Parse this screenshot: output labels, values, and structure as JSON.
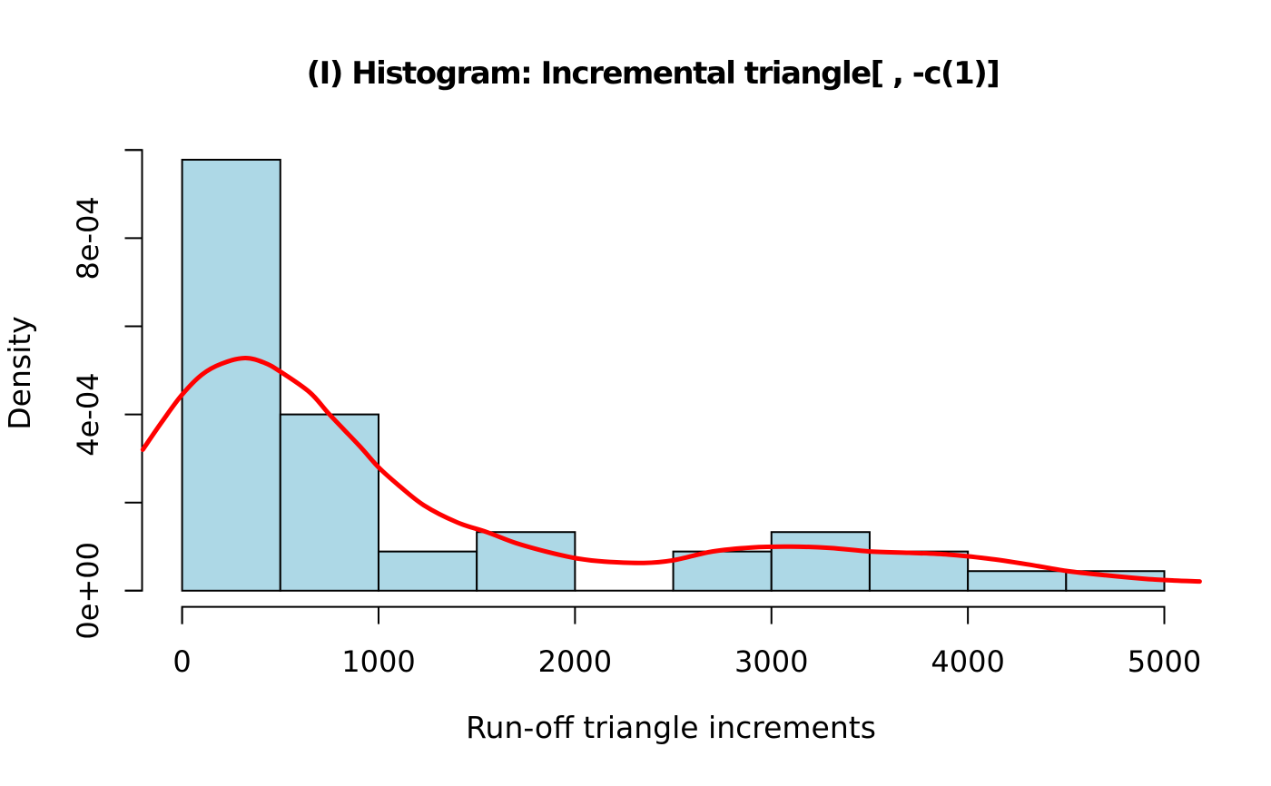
{
  "figure": {
    "background": "#FFFFFF",
    "text_color": "#000000"
  },
  "chart_data": {
    "type": "bar",
    "subtype": "histogram-with-density-curve",
    "title": "(I) Histogram: Incremental triangle[ , -c(1)]",
    "xlabel": "Run-off triangle increments",
    "ylabel": "Density",
    "grid": false,
    "legend": null,
    "xlim": [
      -200,
      5200
    ],
    "ylim": [
      0,
      0.001
    ],
    "x_ticks": [
      {
        "value": 0,
        "label": "0"
      },
      {
        "value": 1000,
        "label": "1000"
      },
      {
        "value": 2000,
        "label": "2000"
      },
      {
        "value": 3000,
        "label": "3000"
      },
      {
        "value": 4000,
        "label": "4000"
      },
      {
        "value": 5000,
        "label": "5000"
      }
    ],
    "y_ticks_minor": [
      0,
      0.0002,
      0.0004,
      0.0006,
      0.0008,
      0.001
    ],
    "y_ticks_labeled": [
      {
        "value": 0,
        "label": "0e+00"
      },
      {
        "value": 0.0004,
        "label": "4e-04"
      },
      {
        "value": 0.0008,
        "label": "8e-04"
      }
    ],
    "bins": {
      "breaks": [
        0,
        500,
        1000,
        1500,
        2000,
        2500,
        3000,
        3500,
        4000,
        4500,
        5000
      ],
      "counts": [
        22,
        9,
        2,
        3,
        0,
        2,
        3,
        2,
        1,
        1
      ],
      "densities": [
        0.000978,
        0.0004,
        8.89e-05,
        0.000133,
        0,
        8.89e-05,
        0.000133,
        8.89e-05,
        4.44e-05,
        4.44e-05
      ]
    },
    "bar_fill": "#ADD8E6",
    "bar_border": "#000000",
    "axis_color": "#000000",
    "density_curve": {
      "color": "#FF0000",
      "width": 5,
      "points": [
        [
          -200,
          0.00032
        ],
        [
          -100,
          0.000385
        ],
        [
          0,
          0.000445
        ],
        [
          100,
          0.00049
        ],
        [
          200,
          0.000515
        ],
        [
          320,
          0.000528
        ],
        [
          420,
          0.000517
        ],
        [
          500,
          0.000497
        ],
        [
          650,
          0.00045
        ],
        [
          750,
          0.0004
        ],
        [
          900,
          0.00033
        ],
        [
          1000,
          0.00028
        ],
        [
          1100,
          0.00024
        ],
        [
          1230,
          0.000194
        ],
        [
          1400,
          0.000155
        ],
        [
          1550,
          0.000133
        ],
        [
          1700,
          0.000108
        ],
        [
          1850,
          8.9e-05
        ],
        [
          2000,
          7.4e-05
        ],
        [
          2150,
          6.6e-05
        ],
        [
          2350,
          6.3e-05
        ],
        [
          2500,
          6.9e-05
        ],
        [
          2700,
          8.9e-05
        ],
        [
          2900,
          9.8e-05
        ],
        [
          3100,
          0.0001
        ],
        [
          3300,
          9.7e-05
        ],
        [
          3500,
          8.9e-05
        ],
        [
          3700,
          8.6e-05
        ],
        [
          3900,
          8.2e-05
        ],
        [
          4100,
          7.3e-05
        ],
        [
          4300,
          6e-05
        ],
        [
          4500,
          4.5e-05
        ],
        [
          4700,
          3.5e-05
        ],
        [
          4900,
          2.7e-05
        ],
        [
          5050,
          2.3e-05
        ],
        [
          5180,
          2.1e-05
        ]
      ]
    }
  }
}
